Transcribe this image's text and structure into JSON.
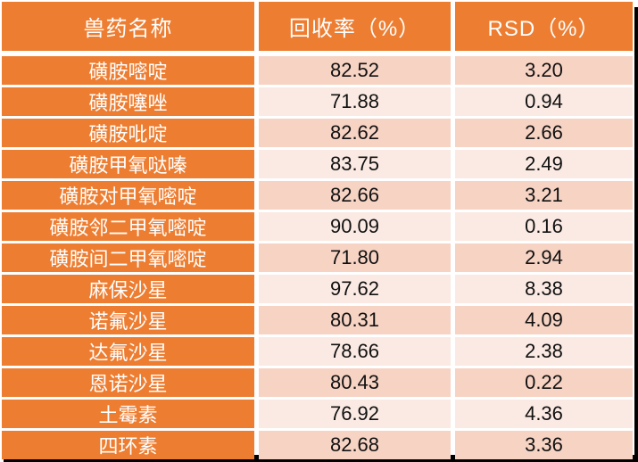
{
  "table": {
    "columns": [
      {
        "label": "兽药名称"
      },
      {
        "label": "回收率（%）"
      },
      {
        "label": "RSD（%）"
      }
    ],
    "rows": [
      {
        "name": "磺胺嘧啶",
        "recovery": "82.52",
        "rsd": "3.20"
      },
      {
        "name": "磺胺噻唑",
        "recovery": "71.88",
        "rsd": "0.94"
      },
      {
        "name": "磺胺吡啶",
        "recovery": "82.62",
        "rsd": "2.66"
      },
      {
        "name": "磺胺甲氧哒嗪",
        "recovery": "83.75",
        "rsd": "2.49"
      },
      {
        "name": "磺胺对甲氧嘧啶",
        "recovery": "82.66",
        "rsd": "3.21"
      },
      {
        "name": "磺胺邻二甲氧嘧啶",
        "recovery": "90.09",
        "rsd": "0.16"
      },
      {
        "name": "磺胺间二甲氧嘧啶",
        "recovery": "71.80",
        "rsd": "2.94"
      },
      {
        "name": "麻保沙星",
        "recovery": "97.62",
        "rsd": "8.38"
      },
      {
        "name": "诺氟沙星",
        "recovery": "80.31",
        "rsd": "4.09"
      },
      {
        "name": "达氟沙星",
        "recovery": "78.66",
        "rsd": "2.38"
      },
      {
        "name": "恩诺沙星",
        "recovery": "80.43",
        "rsd": "0.22"
      },
      {
        "name": "土霉素",
        "recovery": "76.92",
        "rsd": "4.36"
      },
      {
        "name": "四环素",
        "recovery": "82.68",
        "rsd": "3.36"
      }
    ]
  },
  "chart_data": {
    "type": "table",
    "title": "",
    "columns": [
      "兽药名称",
      "回收率（%）",
      "RSD（%）"
    ],
    "rows": [
      [
        "磺胺嘧啶",
        82.52,
        3.2
      ],
      [
        "磺胺噻唑",
        71.88,
        0.94
      ],
      [
        "磺胺吡啶",
        82.62,
        2.66
      ],
      [
        "磺胺甲氧哒嗪",
        83.75,
        2.49
      ],
      [
        "磺胺对甲氧嘧啶",
        82.66,
        3.21
      ],
      [
        "磺胺邻二甲氧嘧啶",
        90.09,
        0.16
      ],
      [
        "磺胺间二甲氧嘧啶",
        71.8,
        2.94
      ],
      [
        "麻保沙星",
        97.62,
        8.38
      ],
      [
        "诺氟沙星",
        80.31,
        4.09
      ],
      [
        "达氟沙星",
        78.66,
        2.38
      ],
      [
        "恩诺沙星",
        80.43,
        0.22
      ],
      [
        "土霉素",
        76.92,
        4.36
      ],
      [
        "四环素",
        82.68,
        3.36
      ]
    ]
  },
  "colors": {
    "header_orange": "#ED7D31",
    "row_band_dark": "#F7D3C4",
    "row_band_light": "#FBEAE3",
    "header_text": "#FFFFFF",
    "value_text": "#111111",
    "shadow": "#000000"
  }
}
